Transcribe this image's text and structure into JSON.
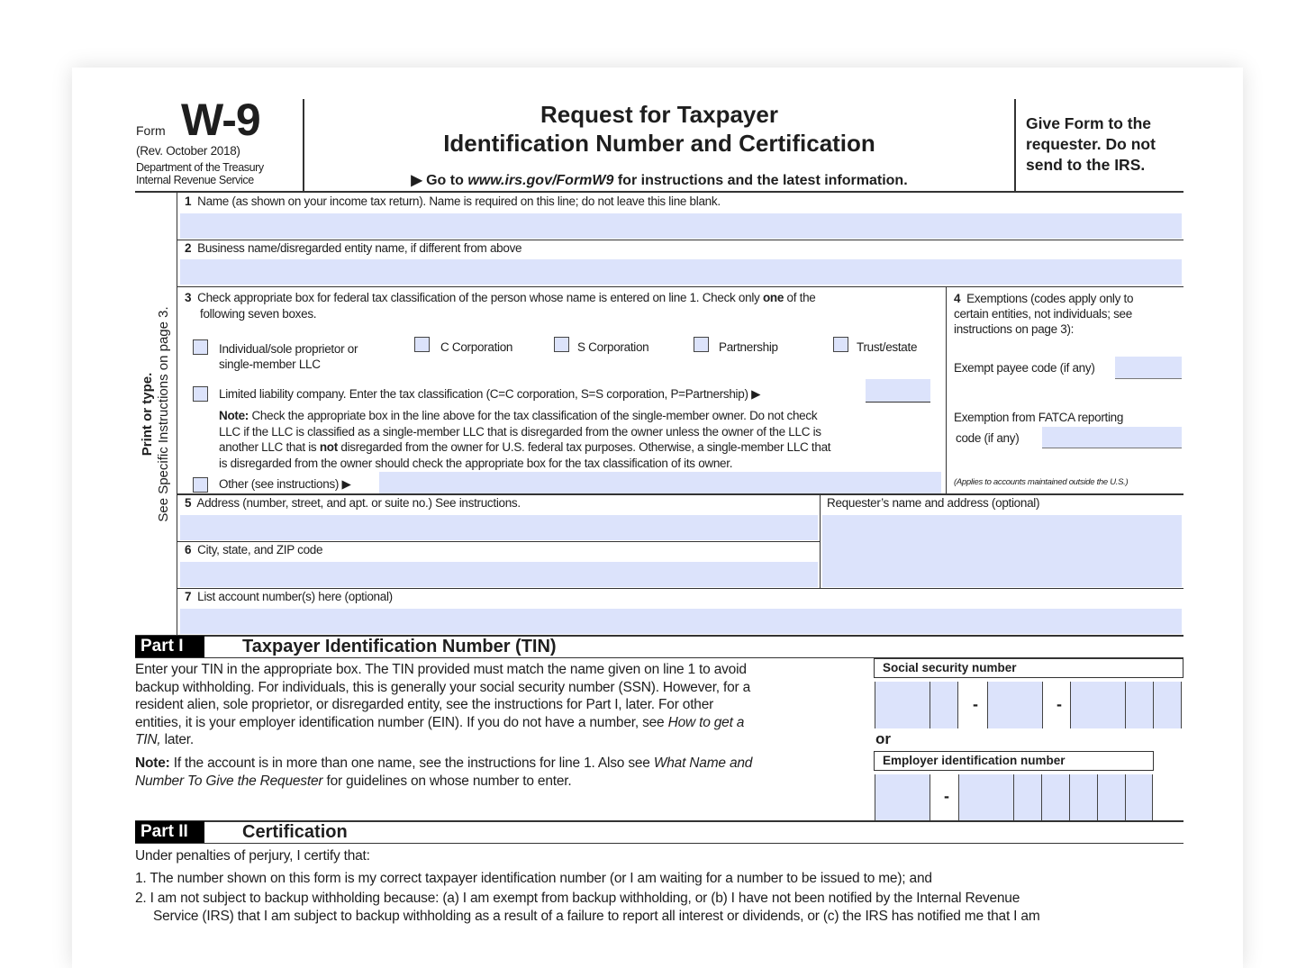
{
  "header": {
    "form_word": "Form",
    "form_number": "W-9",
    "revision": "(Rev. October 2018)",
    "department": "Department of the Treasury",
    "service": "Internal Revenue Service",
    "title_line1": "Request for Taxpayer",
    "title_line2": "Identification Number and Certification",
    "goto_prefix": "▶ Go to ",
    "goto_url": "www.irs.gov/FormW9",
    "goto_suffix": " for instructions and the latest information.",
    "give_form": "Give Form to the requester. Do not send to the IRS."
  },
  "sidebar": {
    "bold": "Print or type.",
    "normal": "See Specific Instructions on page 3."
  },
  "lines": {
    "line1": {
      "num": "1",
      "label": "Name (as shown on your income tax return). Name is required on this line; do not leave this line blank.",
      "value": ""
    },
    "line2": {
      "num": "2",
      "label": "Business name/disregarded entity name, if different from above",
      "value": ""
    },
    "line3": {
      "num": "3",
      "label_a": "Check appropriate box for federal tax classification of the person whose name is entered on line 1. Check only ",
      "label_bold": "one",
      "label_b": " of the",
      "label_c": "following seven boxes.",
      "options": [
        {
          "label": "Individual/sole proprietor or",
          "label2": "single-member LLC",
          "checked": false
        },
        {
          "label": "C Corporation",
          "checked": false
        },
        {
          "label": "S Corporation",
          "checked": false
        },
        {
          "label": "Partnership",
          "checked": false
        },
        {
          "label": "Trust/estate",
          "checked": false
        }
      ],
      "llc_label": "Limited liability company. Enter the tax classification (C=C corporation, S=S corporation, P=Partnership) ▶",
      "llc_value": "",
      "note_bold": "Note:",
      "note_1": " Check the appropriate box in the line above for the tax classification of the single-member owner.  Do not check",
      "note_2": "LLC if the LLC is classified as a single-member LLC that is disregarded from the owner unless the owner of the LLC is",
      "note_3a": "another LLC that is ",
      "note_3bold": "not",
      "note_3b": " disregarded from the owner for U.S. federal tax purposes. Otherwise, a single-member LLC that",
      "note_4": "is disregarded from the owner should check the appropriate box for the tax classification of its owner.",
      "other_label": "Other (see instructions) ▶",
      "other_value": ""
    },
    "line4": {
      "num": "4",
      "label1": "Exemptions (codes apply only to",
      "label2": "certain entities, not individuals; see",
      "label3": "instructions on page 3):",
      "exempt_payee": "Exempt payee code (if any)",
      "fatca1": "Exemption from FATCA reporting",
      "fatca2": "code (if any)",
      "applies": "(Applies to accounts maintained outside the U.S.)"
    },
    "line5": {
      "num": "5",
      "label": "Address (number, street, and apt. or suite no.) See instructions.",
      "value": ""
    },
    "requester": {
      "label": "Requester’s name and address (optional)",
      "value": ""
    },
    "line6": {
      "num": "6",
      "label": "City, state, and ZIP code",
      "value": ""
    },
    "line7": {
      "num": "7",
      "label": "List account number(s) here (optional)",
      "value": ""
    }
  },
  "part1": {
    "badge": "Part I",
    "title": "Taxpayer Identification Number (TIN)",
    "p1": "Enter your TIN in the appropriate box. The TIN provided must match the name given on line 1 to avoid",
    "p2": "backup withholding. For individuals, this is generally your social security number (SSN). However, for a",
    "p3": "resident alien, sole proprietor, or disregarded entity, see the instructions for Part I, later. For other",
    "p4a": "entities, it is your employer identification number (EIN). If you do not have a number, see ",
    "p4i": "How to get a",
    "p5i": "TIN,",
    "p5": " later.",
    "note_bold": "Note:",
    "note1a": " If the account is in more than one name, see the instructions for line 1. Also see ",
    "note1i": "What Name and",
    "note2i": "Number To Give the Requester",
    "note2": " for guidelines on whose number to enter.",
    "ssn_label": "Social security number",
    "or": "or",
    "ein_label": "Employer identification number",
    "dash": "-"
  },
  "part2": {
    "badge": "Part II",
    "title": "Certification",
    "intro": "Under penalties of perjury, I certify that:",
    "item1": "1. The number shown on this form is my correct taxpayer identification number (or I am waiting for a number to be issued to me); and",
    "item2": "2. I am not subject to backup withholding because: (a) I am exempt from backup withholding, or (b) I have not been notified by the Internal Revenue",
    "item2b": "Service (IRS) that I am subject to backup withholding as a result of a failure to report all interest or dividends, or (c) the IRS has notified me that I am"
  },
  "colors": {
    "field_fill": "#dce3fb",
    "rule": "#333333"
  }
}
